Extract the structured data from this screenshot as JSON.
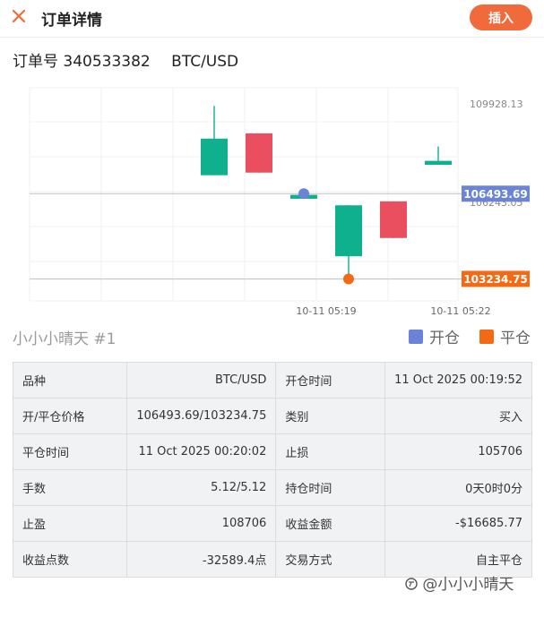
{
  "header": {
    "title": "订单详情",
    "close_icon": "close-icon",
    "insert_label": "插入"
  },
  "order": {
    "number_label": "订单号",
    "number": "340533382",
    "pair": "BTC/USD"
  },
  "chart_data": {
    "type": "candlestick",
    "y_tick_labels": [
      "109928.13",
      "106243.05"
    ],
    "x_tick_labels": [
      "10-11 05:19",
      "10-11 05:22"
    ],
    "candles": [
      {
        "open": 107200,
        "close": 108600,
        "high": 109850,
        "low": 107200,
        "color": "green"
      },
      {
        "open": 108800,
        "close": 107300,
        "high": 108800,
        "low": 107300,
        "color": "red"
      },
      {
        "open": 106300,
        "close": 106450,
        "high": 106450,
        "low": 106300,
        "color": "green"
      },
      {
        "open": 104100,
        "close": 106050,
        "high": 106050,
        "low": 103234.75,
        "color": "green"
      },
      {
        "open": 106200,
        "close": 104800,
        "high": 106200,
        "low": 104800,
        "color": "red"
      },
      {
        "open": 107600,
        "close": 107750,
        "high": 108300,
        "low": 107600,
        "color": "green"
      }
    ],
    "open_price": 106493.69,
    "close_price": 103234.75,
    "open_price_label": "106493.69",
    "close_price_label": "103234.75",
    "colors": {
      "up": "#0fb08e",
      "down": "#ea4f5f",
      "open_marker": "#6b84d8",
      "close_marker": "#f46a14",
      "grid": "#f0f0f0"
    }
  },
  "legend": {
    "owner": "小小小晴天 #1",
    "open_label": "开仓",
    "close_label": "平仓",
    "open_color": "#6b84d8",
    "close_color": "#f46a14"
  },
  "details": [
    {
      "l1": "品种",
      "v1": "BTC/USD",
      "l2": "开仓时间",
      "v2": "11 Oct 2025 00:19:52"
    },
    {
      "l1": "开/平仓价格",
      "v1": "106493.69/103234.75",
      "l2": "类别",
      "v2": "买入"
    },
    {
      "l1": "平仓时间",
      "v1": "11 Oct 2025 00:20:02",
      "l2": "止损",
      "v2": "105706"
    },
    {
      "l1": "手数",
      "v1": "5.12/5.12",
      "l2": "持仓时间",
      "v2": "0天0时0分"
    },
    {
      "l1": "止盈",
      "v1": "108706",
      "l2": "收益金额",
      "v2": "-$16685.77"
    },
    {
      "l1": "收益点数",
      "v1": "-32589.4点",
      "l2": "交易方式",
      "v2": "自主平仓"
    }
  ],
  "watermark": "@小小小晴天",
  "watermark_icon": "zhihu-logo-icon"
}
